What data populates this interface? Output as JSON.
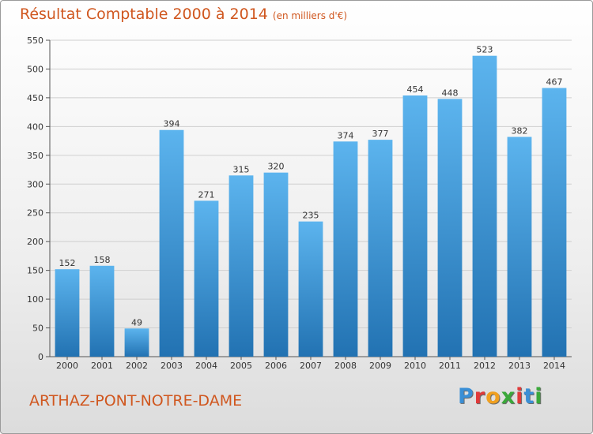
{
  "header": {
    "title": "Résultat Comptable 2000 à 2014",
    "subtitle": "(en milliers d'€)"
  },
  "footer": {
    "place_name": "ARTHAZ-PONT-NOTRE-DAME",
    "logo_letters": [
      "P",
      "r",
      "o",
      "x",
      "i",
      "t",
      "i"
    ],
    "logo_colors": [
      "#3a8fd6",
      "#e03a3a",
      "#f0a020",
      "#3aa83a",
      "#e03a3a",
      "#3a8fd6",
      "#3aa83a"
    ]
  },
  "colors": {
    "bar_light": "#5cb4ee",
    "bar_dark": "#2272b2",
    "grid": "#cfcfcf",
    "title": "#d0571f"
  },
  "chart_data": {
    "type": "bar",
    "categories": [
      "2000",
      "2001",
      "2002",
      "2003",
      "2004",
      "2005",
      "2006",
      "2007",
      "2008",
      "2009",
      "2010",
      "2011",
      "2012",
      "2013",
      "2014"
    ],
    "values": [
      152,
      158,
      49,
      394,
      271,
      315,
      320,
      235,
      374,
      377,
      454,
      448,
      523,
      382,
      467
    ],
    "ylim": [
      0,
      550
    ],
    "yticks": [
      0,
      50,
      100,
      150,
      200,
      250,
      300,
      350,
      400,
      450,
      500,
      550
    ],
    "grid": true,
    "xlabel": "",
    "ylabel": ""
  }
}
